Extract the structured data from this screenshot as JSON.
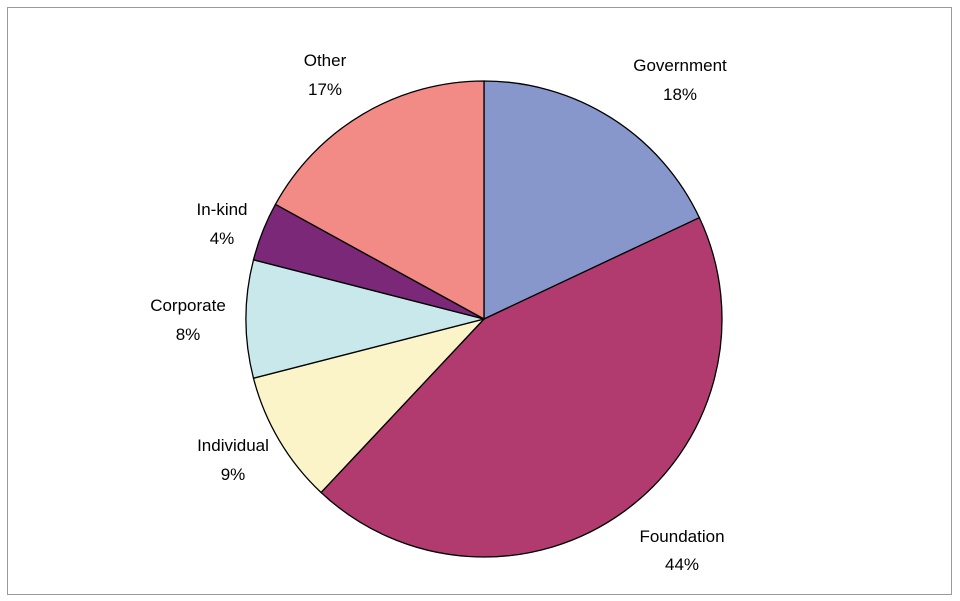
{
  "chart_data": {
    "type": "pie",
    "slices": [
      {
        "label": "Government",
        "percent_label": "18%",
        "value": 18,
        "color": "#8797CC"
      },
      {
        "label": "Foundation",
        "percent_label": "44%",
        "value": 44,
        "color": "#B13B6F"
      },
      {
        "label": "Individual",
        "percent_label": "9%",
        "value": 9,
        "color": "#FAF4C8"
      },
      {
        "label": "Corporate",
        "percent_label": "8%",
        "value": 8,
        "color": "#C8E8EB"
      },
      {
        "label": "In-kind",
        "percent_label": "4%",
        "value": 4,
        "color": "#7A2877"
      },
      {
        "label": "Other",
        "percent_label": "17%",
        "value": 17,
        "color": "#F28A85"
      }
    ],
    "start_angle": "12 o'clock",
    "direction": "clockwise",
    "title": "",
    "legend": "none"
  }
}
